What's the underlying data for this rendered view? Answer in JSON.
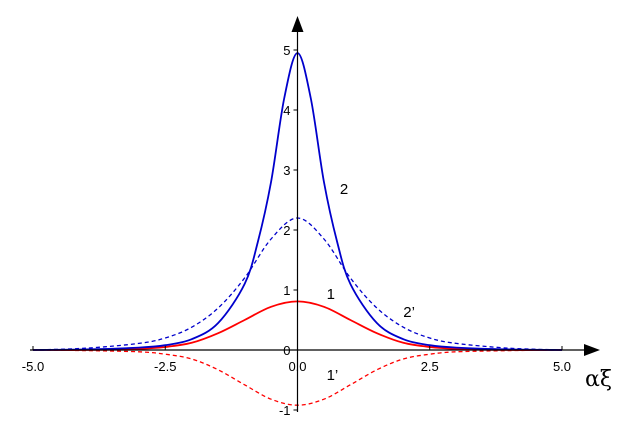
{
  "chart_data": {
    "type": "line",
    "title": "",
    "xlabel": "αξ",
    "ylabel": "",
    "xlim": [
      -5.0,
      5.0
    ],
    "ylim": [
      -1.05,
      5.25
    ],
    "grid": false,
    "x_ticks": [
      "-5.0",
      "-2.5",
      "0.0",
      "2.5",
      "5.0"
    ],
    "y_ticks": [
      "-1",
      "0",
      "1",
      "2",
      "3",
      "4",
      "5"
    ],
    "series": [
      {
        "name": "1",
        "color": "#ff0000",
        "dash": "solid",
        "x": [
          -5.0,
          -4.0,
          -3.0,
          -2.5,
          -2.0,
          -1.5,
          -1.0,
          -0.5,
          0.0,
          0.5,
          1.0,
          1.5,
          2.0,
          2.5,
          3.0,
          4.0,
          5.0
        ],
        "y": [
          0.0,
          0.0,
          0.02,
          0.05,
          0.12,
          0.28,
          0.5,
          0.72,
          0.81,
          0.72,
          0.5,
          0.28,
          0.12,
          0.05,
          0.02,
          0.0,
          0.0
        ]
      },
      {
        "name": "1’",
        "color": "#ff0000",
        "dash": "dashed",
        "x": [
          -5.0,
          -4.0,
          -3.0,
          -2.5,
          -2.0,
          -1.5,
          -1.0,
          -0.5,
          0.0,
          0.5,
          1.0,
          1.5,
          2.0,
          2.5,
          3.0,
          4.0,
          5.0
        ],
        "y": [
          0.0,
          -0.01,
          -0.03,
          -0.07,
          -0.15,
          -0.33,
          -0.58,
          -0.82,
          -0.92,
          -0.82,
          -0.58,
          -0.33,
          -0.15,
          -0.07,
          -0.03,
          -0.01,
          0.0
        ]
      },
      {
        "name": "2",
        "color": "#0000cc",
        "dash": "solid",
        "x": [
          -5.0,
          -4.0,
          -3.0,
          -2.5,
          -2.0,
          -1.5,
          -1.0,
          -0.75,
          -0.5,
          -0.25,
          0.0,
          0.25,
          0.5,
          0.75,
          1.0,
          1.5,
          2.0,
          2.5,
          3.0,
          4.0,
          5.0
        ],
        "y": [
          0.0,
          0.01,
          0.04,
          0.08,
          0.18,
          0.45,
          1.1,
          1.8,
          2.8,
          4.2,
          4.95,
          4.2,
          2.8,
          1.8,
          1.1,
          0.45,
          0.18,
          0.08,
          0.04,
          0.01,
          0.0
        ]
      },
      {
        "name": "2’",
        "color": "#0000cc",
        "dash": "dashed",
        "x": [
          -5.0,
          -4.0,
          -3.0,
          -2.5,
          -2.0,
          -1.5,
          -1.0,
          -0.5,
          0.0,
          0.5,
          1.0,
          1.5,
          2.0,
          2.5,
          3.0,
          4.0,
          5.0
        ],
        "y": [
          0.0,
          0.03,
          0.11,
          0.2,
          0.38,
          0.7,
          1.2,
          1.85,
          2.2,
          1.85,
          1.2,
          0.7,
          0.38,
          0.2,
          0.11,
          0.03,
          0.0
        ]
      }
    ],
    "annotations": [
      {
        "text": "2",
        "x": 0.8,
        "y": 2.6
      },
      {
        "text": "1",
        "x": 0.55,
        "y": 0.85
      },
      {
        "text": "2’",
        "x": 2.0,
        "y": 0.55
      },
      {
        "text": "1’",
        "x": 0.55,
        "y": -0.5
      }
    ]
  }
}
